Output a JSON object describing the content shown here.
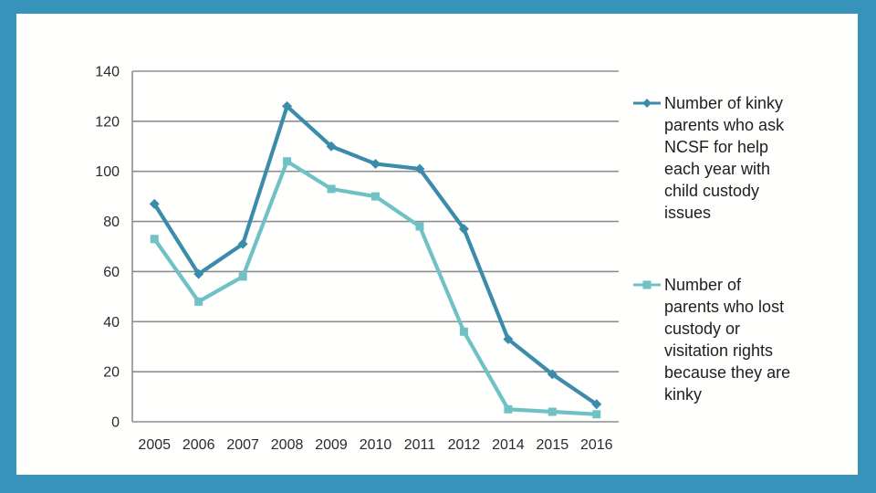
{
  "frame": {
    "border_color": "#3793ba",
    "canvas_color": "#fffffe"
  },
  "chart_data": {
    "type": "line",
    "title": "",
    "xlabel": "",
    "ylabel": "",
    "categories": [
      "2005",
      "2006",
      "2007",
      "2008",
      "2009",
      "2010",
      "2011",
      "2012",
      "2014",
      "2015",
      "2016"
    ],
    "series": [
      {
        "name": "Number of kinky parents who ask NCSF for help each year with child custody issues",
        "color": "#3a8caa",
        "marker": "diamond",
        "values": [
          87,
          59,
          71,
          126,
          110,
          103,
          101,
          77,
          33,
          19,
          7
        ]
      },
      {
        "name": "Number of parents who lost custody or visitation rights because they are kinky",
        "color": "#6fc1c5",
        "marker": "square",
        "values": [
          73,
          48,
          58,
          104,
          93,
          90,
          78,
          36,
          5,
          4,
          3
        ]
      }
    ],
    "ylim": [
      0,
      140
    ],
    "yticks": [
      140,
      120,
      100,
      80,
      60,
      40,
      20,
      0
    ],
    "grid": true,
    "legend_position": "right",
    "colors": {
      "gridline": "#8e8e8e",
      "axis": "#8e8e8e",
      "tick_label": "#2b2b2b",
      "legend_text": "#1e1e1e"
    }
  }
}
